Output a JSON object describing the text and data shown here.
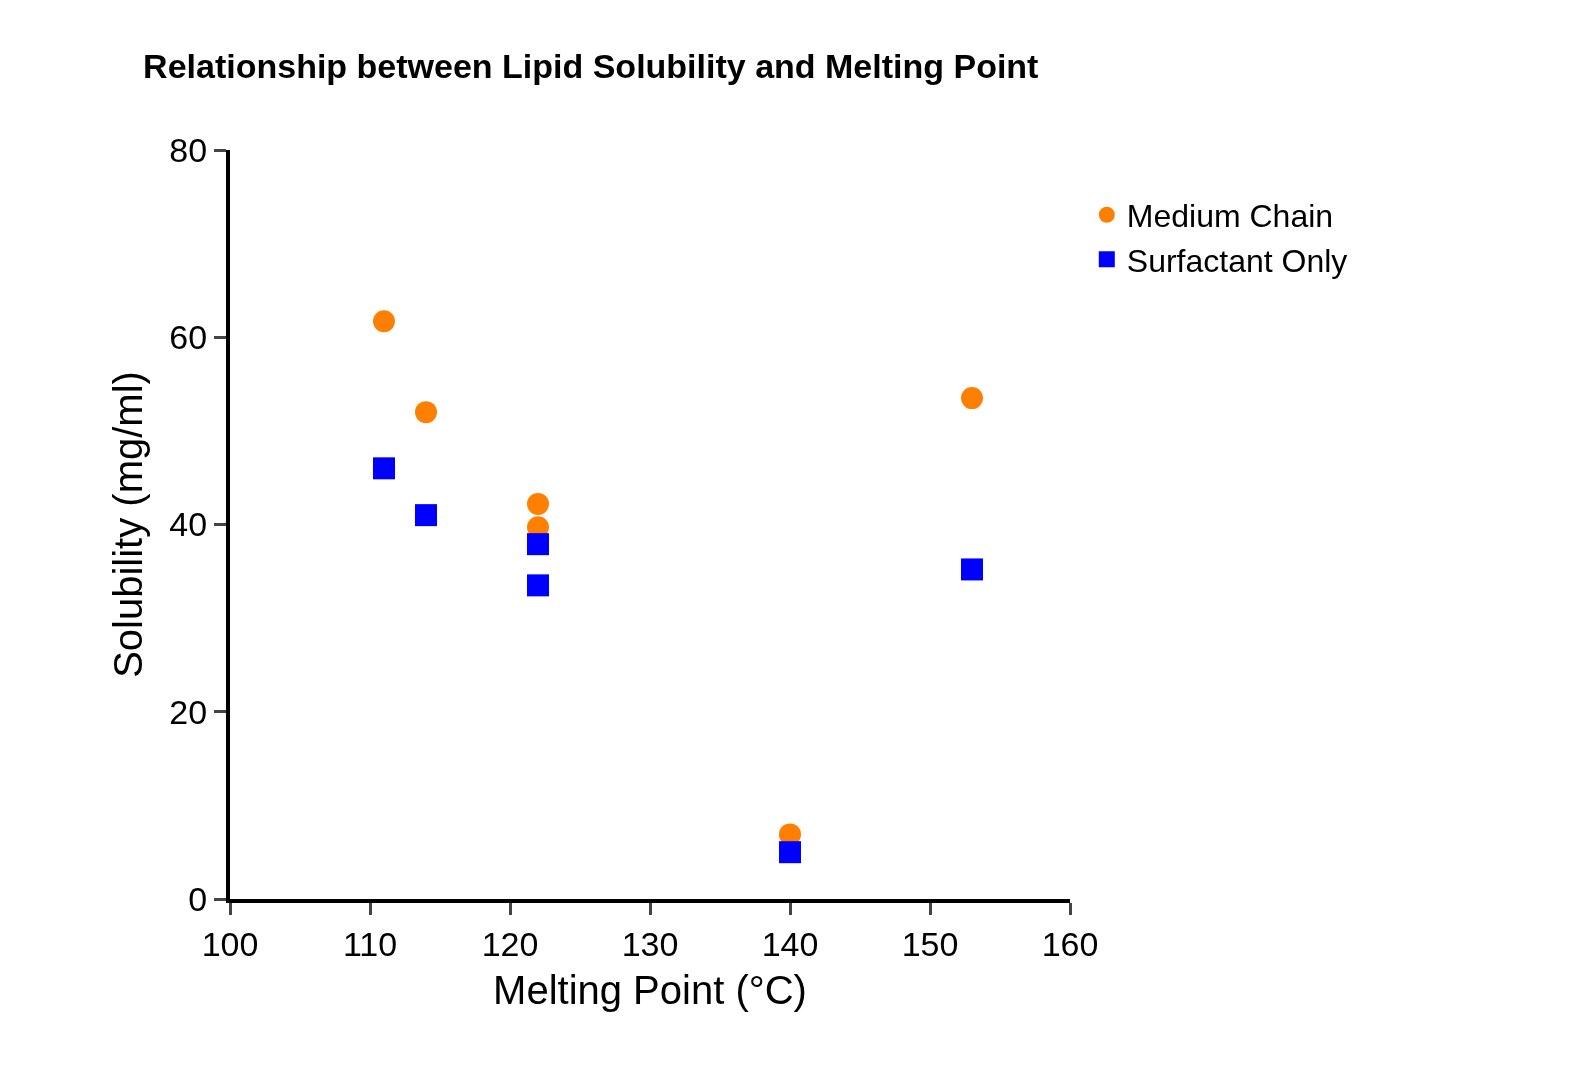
{
  "chart_data": {
    "type": "scatter",
    "title": "Relationship between Lipid Solubility and Melting Point",
    "xlabel": "Melting Point (°C)",
    "ylabel": "Solubility (mg/ml)",
    "xlim": [
      100,
      160
    ],
    "xticks": [
      100,
      110,
      120,
      130,
      140,
      150,
      160
    ],
    "ylim": [
      0,
      80
    ],
    "yticks": [
      0,
      20,
      40,
      60,
      80
    ],
    "legend": "top right",
    "series": [
      {
        "name": "Medium Chain",
        "color": "#ff8000",
        "marker": "circle",
        "x": [
          111,
          114,
          122,
          122,
          140,
          153
        ],
        "values": [
          61.7,
          52.0,
          42.2,
          39.7,
          6.9,
          53.5
        ]
      },
      {
        "name": "Surfactant Only",
        "color": "#0000ff",
        "marker": "square",
        "x": [
          111,
          114,
          122,
          122,
          140,
          153
        ],
        "values": [
          46.0,
          41.0,
          37.9,
          33.5,
          5.0,
          35.2
        ]
      }
    ]
  }
}
